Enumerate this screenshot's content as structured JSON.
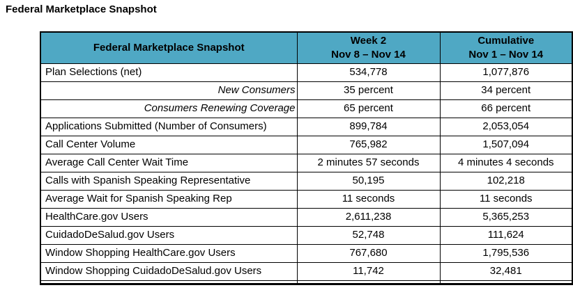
{
  "title": "Federal Marketplace Snapshot",
  "colors": {
    "header_bg": "#4FA8C4",
    "border": "#000000",
    "text": "#000000"
  },
  "table": {
    "header": {
      "label_col": "Federal Marketplace Snapshot",
      "week_col": {
        "line1": "Week 2",
        "line2": "Nov 8 – Nov 14"
      },
      "cumulative_col": {
        "line1": "Cumulative",
        "line2": "Nov 1 – Nov 14"
      }
    },
    "rows": [
      {
        "label": "Plan Selections (net)",
        "week2": "534,778",
        "cumulative": "1,077,876",
        "sub": false
      },
      {
        "label": "New Consumers",
        "week2": "35 percent",
        "cumulative": "34 percent",
        "sub": true
      },
      {
        "label": "Consumers Renewing Coverage",
        "week2": "65 percent",
        "cumulative": "66 percent",
        "sub": true
      },
      {
        "label": "Applications Submitted (Number of Consumers)",
        "week2": "899,784",
        "cumulative": "2,053,054",
        "sub": false
      },
      {
        "label": "Call Center Volume",
        "week2": "765,982",
        "cumulative": "1,507,094",
        "sub": false
      },
      {
        "label": "Average Call Center Wait Time",
        "week2": "2 minutes 57 seconds",
        "cumulative": "4 minutes 4 seconds",
        "sub": false
      },
      {
        "label": "Calls with Spanish Speaking Representative",
        "week2": "50,195",
        "cumulative": "102,218",
        "sub": false
      },
      {
        "label": "Average Wait for Spanish Speaking Rep",
        "week2": "11 seconds",
        "cumulative": "11 seconds",
        "sub": false
      },
      {
        "label": "HealthCare.gov Users",
        "week2": "2,611,238",
        "cumulative": "5,365,253",
        "sub": false
      },
      {
        "label": "CuidadoDeSalud.gov Users",
        "week2": "52,748",
        "cumulative": "111,624",
        "sub": false
      },
      {
        "label": "Window Shopping HealthCare.gov Users",
        "week2": "767,680",
        "cumulative": "1,795,536",
        "sub": false
      },
      {
        "label": "Window Shopping CuidadoDeSalud.gov Users",
        "week2": "11,742",
        "cumulative": "32,481",
        "sub": false
      }
    ]
  }
}
